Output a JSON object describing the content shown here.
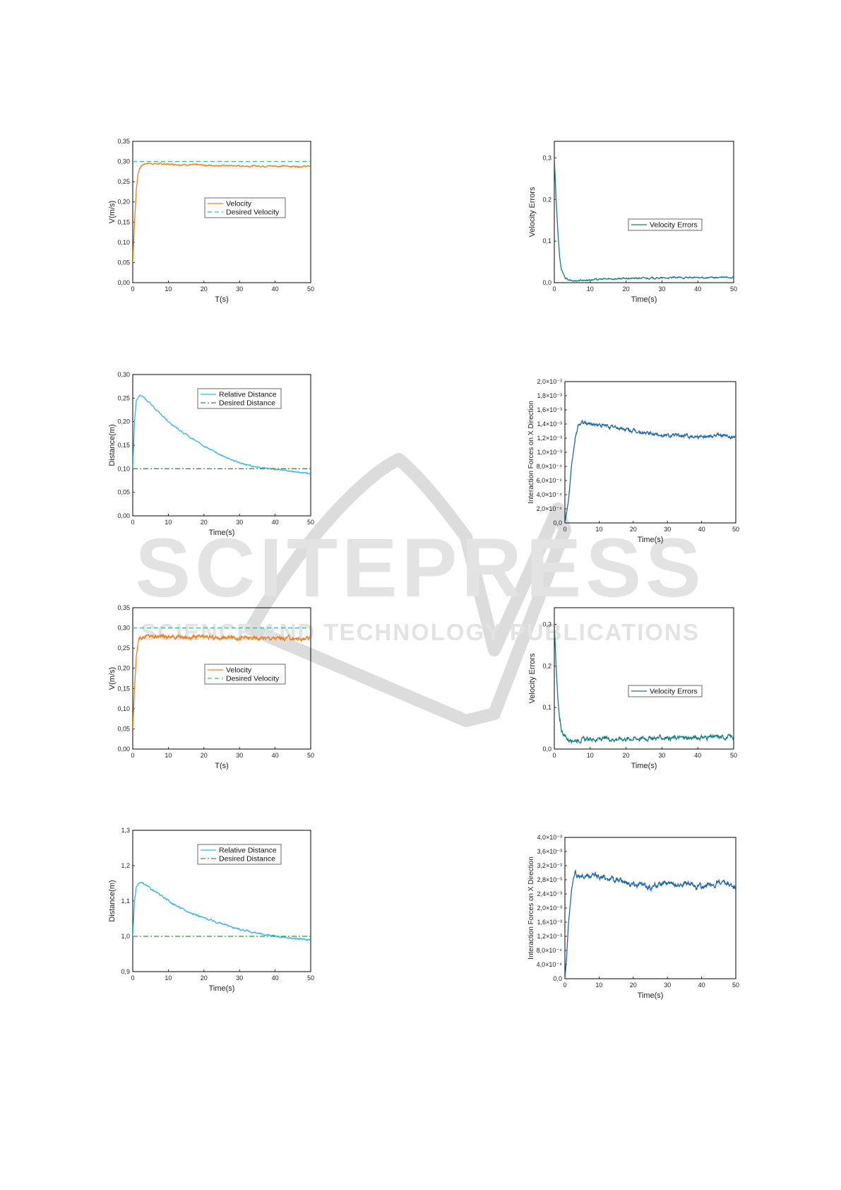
{
  "watermark": {
    "brand": "SCITEPRESS",
    "tagline": "SCIENCE AND TECHNOLOGY PUBLICATIONS"
  },
  "chart_data": [
    {
      "id": "c1",
      "type": "line",
      "xlabel": "T(s)",
      "ylabel": "V(m/s)",
      "xlim": [
        0,
        50
      ],
      "ylim": [
        0,
        0.35
      ],
      "xticks": [
        "0",
        "10",
        "20",
        "30",
        "40",
        "50"
      ],
      "yticks": [
        "0,00",
        "0,05",
        "0,10",
        "0,15",
        "0,20",
        "0,25",
        "0,30",
        "0,35"
      ],
      "legend_position": "middle-right",
      "series": [
        {
          "name": "Velocity",
          "color": "#f07f1a",
          "style": "solid",
          "x": [
            0,
            0.5,
            1,
            1.5,
            2,
            3,
            4,
            5,
            8,
            12,
            16,
            20,
            25,
            30,
            35,
            40,
            45,
            50
          ],
          "y": [
            0.05,
            0.15,
            0.23,
            0.27,
            0.285,
            0.293,
            0.296,
            0.295,
            0.294,
            0.293,
            0.292,
            0.291,
            0.29,
            0.289,
            0.289,
            0.289,
            0.288,
            0.288
          ],
          "noise": 0.0015
        },
        {
          "name": "Desired Velocity",
          "color": "#3cb8a0",
          "style": "dashed",
          "x": [
            0,
            50
          ],
          "y": [
            0.3,
            0.3
          ]
        }
      ]
    },
    {
      "id": "c2",
      "type": "line",
      "xlabel": "Time(s)",
      "ylabel": "Velocity Errors",
      "xlim": [
        0,
        50
      ],
      "ylim": [
        0,
        0.34
      ],
      "xticks": [
        "0",
        "10",
        "20",
        "30",
        "40",
        "50"
      ],
      "yticks": [
        "0,0",
        "0,1",
        "0,2",
        "0,3"
      ],
      "ytick_values": [
        0,
        0.1,
        0.2,
        0.3
      ],
      "legend_position": "middle-right",
      "series": [
        {
          "name": "Velocity Errors",
          "color": "#137c82",
          "style": "solid",
          "x": [
            0,
            0.5,
            1,
            1.5,
            2,
            3,
            4,
            5,
            6,
            10,
            15,
            20,
            25,
            30,
            35,
            40,
            45,
            50
          ],
          "y": [
            0.3,
            0.2,
            0.12,
            0.06,
            0.03,
            0.012,
            0.006,
            0.004,
            0.005,
            0.007,
            0.009,
            0.01,
            0.011,
            0.011,
            0.012,
            0.012,
            0.012,
            0.013
          ],
          "noise": 0.0015
        }
      ]
    },
    {
      "id": "c3",
      "type": "line",
      "xlabel": "Time(s)",
      "ylabel": "Distance(m)",
      "xlim": [
        0,
        50
      ],
      "ylim": [
        0,
        0.3
      ],
      "xticks": [
        "0",
        "10",
        "20",
        "30",
        "40",
        "50"
      ],
      "yticks": [
        "0,00",
        "0,05",
        "0,10",
        "0,15",
        "0,20",
        "0,25",
        "0,30"
      ],
      "legend_position": "top-right",
      "series": [
        {
          "name": "Relative Distance",
          "color": "#3bb4ec",
          "style": "solid",
          "x": [
            0,
            0.5,
            1,
            2,
            3,
            5,
            8,
            10,
            15,
            20,
            25,
            30,
            35,
            40,
            45,
            50
          ],
          "y": [
            0.1,
            0.2,
            0.245,
            0.256,
            0.252,
            0.238,
            0.215,
            0.2,
            0.172,
            0.148,
            0.128,
            0.112,
            0.104,
            0.098,
            0.094,
            0.09
          ],
          "noise": 0.0012
        },
        {
          "name": "Desired Distance",
          "color": "#2e9b34",
          "style": "dashdot",
          "x": [
            0,
            50
          ],
          "y": [
            0.1,
            0.1
          ]
        }
      ]
    },
    {
      "id": "c4",
      "type": "line",
      "xlabel": "Time(s)",
      "ylabel": "Interaction Forces on X Direction",
      "xlim": [
        0,
        50
      ],
      "ylim": [
        0,
        0.002
      ],
      "xticks": [
        "0",
        "10",
        "20",
        "30",
        "40",
        "50"
      ],
      "yticks": [
        "0,0",
        "2,0×10⁻⁴",
        "4,0×10⁻⁴",
        "6,0×10⁻⁴",
        "8,0×10⁻⁴",
        "1,0×10⁻³",
        "1,2×10⁻³",
        "1,4×10⁻³",
        "1,6×10⁻³",
        "1,8×10⁻³",
        "2,0×10⁻³"
      ],
      "series": [
        {
          "color": "#1f66a8",
          "style": "solid",
          "x": [
            0,
            1,
            2,
            3,
            4,
            5,
            8,
            12,
            16,
            20,
            25,
            30,
            35,
            40,
            45,
            50
          ],
          "y": [
            0,
            0.0003,
            0.0008,
            0.0012,
            0.00138,
            0.00142,
            0.0014,
            0.00137,
            0.00134,
            0.0013,
            0.00126,
            0.00124,
            0.00123,
            0.00123,
            0.00124,
            0.00121
          ],
          "noise": 2e-05
        }
      ]
    },
    {
      "id": "c5",
      "type": "line",
      "xlabel": "T(s)",
      "ylabel": "V(m/s)",
      "xlim": [
        0,
        50
      ],
      "ylim": [
        0,
        0.35
      ],
      "xticks": [
        "0",
        "10",
        "20",
        "30",
        "40",
        "50"
      ],
      "yticks": [
        "0,00",
        "0,05",
        "0,10",
        "0,15",
        "0,20",
        "0,25",
        "0,30",
        "0,35"
      ],
      "legend_position": "middle-right",
      "series": [
        {
          "name": "Velocity",
          "color": "#f07f1a",
          "style": "solid",
          "x": [
            0,
            0.5,
            1,
            1.5,
            2,
            3,
            5,
            8,
            12,
            16,
            20,
            25,
            30,
            35,
            40,
            45,
            50
          ],
          "y": [
            0.05,
            0.15,
            0.23,
            0.262,
            0.275,
            0.28,
            0.28,
            0.279,
            0.278,
            0.277,
            0.277,
            0.276,
            0.276,
            0.275,
            0.275,
            0.274,
            0.272
          ],
          "noise": 0.004
        },
        {
          "name": "Desired Velocity",
          "color": "#3cb8a0",
          "style": "dashed",
          "x": [
            0,
            50
          ],
          "y": [
            0.3,
            0.3
          ]
        }
      ]
    },
    {
      "id": "c6",
      "type": "line",
      "xlabel": "Time(s)",
      "ylabel": "Velocity Errors",
      "xlim": [
        0,
        50
      ],
      "ylim": [
        0,
        0.34
      ],
      "xticks": [
        "0",
        "10",
        "20",
        "30",
        "40",
        "50"
      ],
      "yticks": [
        "0,0",
        "0,1",
        "0,2",
        "0,3"
      ],
      "ytick_values": [
        0,
        0.1,
        0.2,
        0.3
      ],
      "legend_position": "middle-right",
      "series": [
        {
          "name": "Velocity Errors",
          "color": "#137c82",
          "style": "solid",
          "x": [
            0,
            0.5,
            1,
            1.5,
            2,
            3,
            4,
            6,
            10,
            15,
            20,
            25,
            30,
            35,
            40,
            45,
            50
          ],
          "y": [
            0.3,
            0.2,
            0.12,
            0.07,
            0.045,
            0.03,
            0.022,
            0.022,
            0.023,
            0.024,
            0.025,
            0.026,
            0.027,
            0.027,
            0.028,
            0.028,
            0.029
          ],
          "noise": 0.004
        }
      ]
    },
    {
      "id": "c7",
      "type": "line",
      "xlabel": "Time(s)",
      "ylabel": "Distance(m)",
      "xlim": [
        0,
        50
      ],
      "ylim": [
        0.9,
        1.3
      ],
      "xticks": [
        "0",
        "10",
        "20",
        "30",
        "40",
        "50"
      ],
      "yticks": [
        "0,9",
        "1,0",
        "1,1",
        "1,2",
        "1,3"
      ],
      "ytick_values": [
        0.9,
        1.0,
        1.1,
        1.2,
        1.3
      ],
      "legend_position": "top-right",
      "series": [
        {
          "name": "Relative Distance",
          "color": "#3bb4ec",
          "style": "solid",
          "x": [
            0,
            0.5,
            1,
            2,
            3,
            5,
            8,
            10,
            15,
            20,
            25,
            30,
            35,
            40,
            45,
            50
          ],
          "y": [
            1.0,
            1.1,
            1.14,
            1.152,
            1.148,
            1.135,
            1.115,
            1.1,
            1.072,
            1.052,
            1.036,
            1.02,
            1.008,
            1.0,
            0.994,
            0.99
          ],
          "noise": 0.002
        },
        {
          "name": "Desired Distance",
          "color": "#2e9b34",
          "style": "dashdot",
          "x": [
            0,
            50
          ],
          "y": [
            1.0,
            1.0
          ]
        }
      ]
    },
    {
      "id": "c8",
      "type": "line",
      "xlabel": "Time(s)",
      "ylabel": "Interaction Forces on X Direction",
      "xlim": [
        0,
        50
      ],
      "ylim": [
        0,
        0.004
      ],
      "xticks": [
        "0",
        "10",
        "20",
        "30",
        "40",
        "50"
      ],
      "yticks": [
        "0,0",
        "4,0×10⁻⁴",
        "8,0×10⁻⁴",
        "1,2×10⁻³",
        "1,6×10⁻³",
        "2,0×10⁻³",
        "2,4×10⁻³",
        "2,8×10⁻³",
        "3,2×10⁻³",
        "3,6×10⁻³",
        "4,0×10⁻³"
      ],
      "series": [
        {
          "color": "#1f66a8",
          "style": "solid",
          "x": [
            0,
            0.5,
            1,
            2,
            3,
            4,
            6,
            10,
            15,
            20,
            25,
            30,
            35,
            40,
            45,
            50
          ],
          "y": [
            0,
            0.0006,
            0.0015,
            0.0026,
            0.003,
            0.0029,
            0.0029,
            0.0029,
            0.0028,
            0.0027,
            0.0026,
            0.0027,
            0.0027,
            0.0026,
            0.0027,
            0.0026
          ],
          "noise": 6e-05
        }
      ]
    }
  ]
}
